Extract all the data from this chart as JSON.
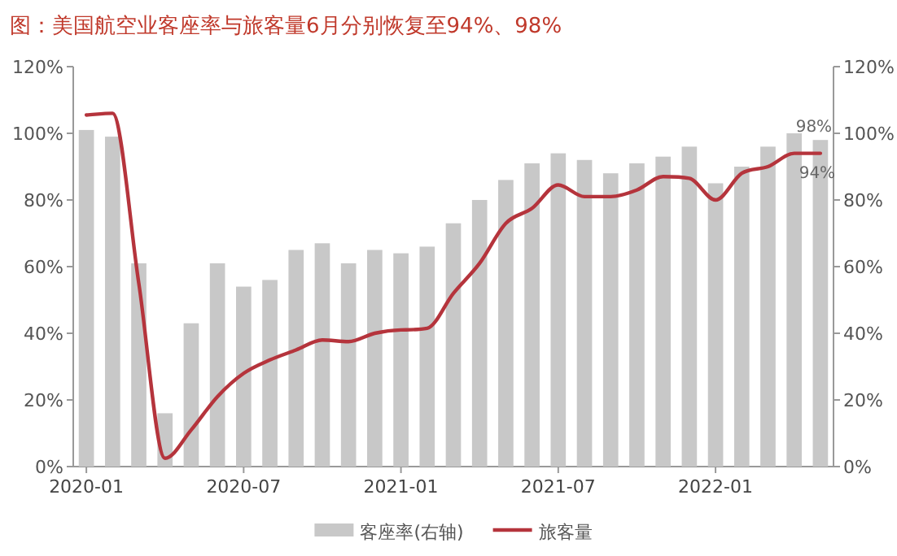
{
  "chart_data": {
    "type": "bar",
    "title": "图：美国航空业客座率与旅客量6月分别恢复至94%、98%",
    "categories": [
      "2020-01",
      null,
      null,
      null,
      null,
      null,
      "2020-07",
      null,
      null,
      null,
      null,
      null,
      "2021-01",
      null,
      null,
      null,
      null,
      null,
      "2021-07",
      null,
      null,
      null,
      null,
      null,
      "2022-01",
      null,
      null,
      null,
      null
    ],
    "series": [
      {
        "name": "客座率(右轴)",
        "axis": "y2",
        "color": "#c8c8c8",
        "values": [
          101,
          99,
          61,
          16,
          43,
          61,
          54,
          56,
          65,
          67,
          61,
          65,
          64,
          66,
          73,
          80,
          86,
          91,
          94,
          92,
          88,
          91,
          93,
          96,
          85,
          90,
          96,
          100,
          98
        ],
        "value_labels": [
          null,
          null,
          null,
          null,
          null,
          null,
          null,
          null,
          null,
          null,
          null,
          null,
          null,
          null,
          null,
          null,
          null,
          null,
          null,
          null,
          null,
          null,
          null,
          null,
          null,
          null,
          null,
          null,
          "98%"
        ]
      },
      {
        "name": "旅客量",
        "type": "line",
        "axis": "y",
        "color": "#b5343c",
        "values": [
          105.5,
          106,
          55,
          2.5,
          11,
          21,
          28,
          32,
          35,
          38,
          37.5,
          40,
          41,
          41.5,
          52,
          61,
          73,
          77.5,
          84.5,
          81,
          81,
          83,
          87,
          86.5,
          80,
          88,
          90,
          94,
          94
        ],
        "value_labels": [
          null,
          null,
          null,
          null,
          null,
          null,
          null,
          null,
          null,
          null,
          null,
          null,
          null,
          null,
          null,
          null,
          null,
          null,
          null,
          null,
          null,
          null,
          null,
          null,
          null,
          null,
          null,
          null,
          "94%"
        ]
      }
    ],
    "ylim": [
      0,
      120
    ],
    "yticks": [
      {
        "value": 0,
        "label": "0%"
      },
      {
        "value": 20,
        "label": "20%"
      },
      {
        "value": 40,
        "label": "40%"
      },
      {
        "value": 60,
        "label": "60%"
      },
      {
        "value": 80,
        "label": "80%"
      },
      {
        "value": 100,
        "label": "100%"
      },
      {
        "value": 120,
        "label": "120%"
      }
    ],
    "y2lim": [
      0,
      120
    ],
    "y2ticks": [
      {
        "value": 0,
        "label": "0%"
      },
      {
        "value": 20,
        "label": "20%"
      },
      {
        "value": 40,
        "label": "40%"
      },
      {
        "value": 60,
        "label": "60%"
      },
      {
        "value": 80,
        "label": "80%"
      },
      {
        "value": 100,
        "label": "100%"
      },
      {
        "value": 120,
        "label": "120%"
      }
    ],
    "legend": "bottom"
  }
}
